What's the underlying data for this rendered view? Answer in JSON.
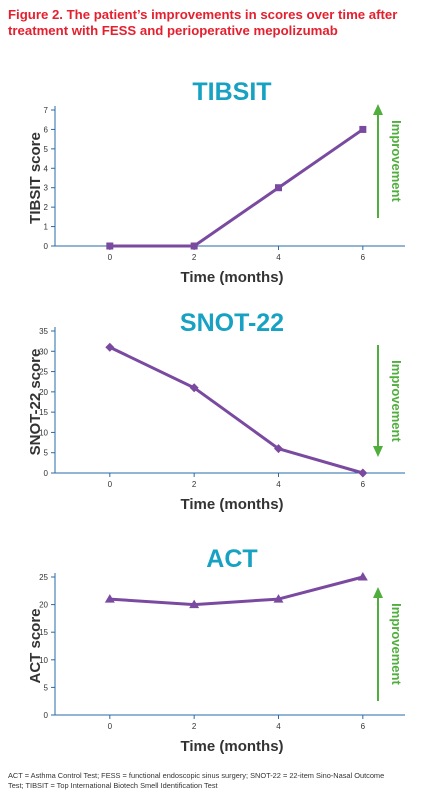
{
  "figure": {
    "title_line1": "Figure 2. The patient’s improvements in scores over time after",
    "title_line2": "treatment with FESS and perioperative mepolizumab",
    "footnote_line1": "ACT = Asthma Control Test; FESS = functional endoscopic sinus surgery; SNOT-22 = 22-item Sino-Nasal Outcome",
    "footnote_line2": "Test; TIBSIT = Top International Biotech Smell Identification Test"
  },
  "colors": {
    "title": "#e4202f",
    "chart_title": "#17a2c3",
    "series": "#7a4aa0",
    "improvement": "#4fae3c",
    "axis": "#2a6aa8"
  },
  "chart_data": [
    {
      "type": "line",
      "title": "TIBSIT",
      "xlabel": "Time (months)",
      "ylabel": "TIBSIT score",
      "x": [
        0,
        2,
        4,
        6
      ],
      "xticks": [
        0,
        2,
        4,
        6
      ],
      "yticks": [
        0,
        1,
        2,
        3,
        4,
        5,
        6,
        7
      ],
      "xlim": [
        -1.3,
        7
      ],
      "ylim": [
        0,
        7
      ],
      "series": [
        {
          "values": [
            0,
            0,
            3,
            6
          ],
          "marker": "square"
        }
      ],
      "annotation": {
        "text": "Improvement",
        "direction": "up"
      }
    },
    {
      "type": "line",
      "title": "SNOT-22",
      "xlabel": "Time (months)",
      "ylabel": "SNOT-22 score",
      "x": [
        0,
        2,
        4,
        6
      ],
      "xticks": [
        0,
        2,
        4,
        6
      ],
      "yticks": [
        0,
        5,
        10,
        15,
        20,
        25,
        30,
        35
      ],
      "xlim": [
        -1.3,
        7
      ],
      "ylim": [
        0,
        35
      ],
      "series": [
        {
          "values": [
            31,
            21,
            6,
            0
          ],
          "marker": "diamond"
        }
      ],
      "annotation": {
        "text": "Improvement",
        "direction": "down"
      }
    },
    {
      "type": "line",
      "title": "ACT",
      "xlabel": "Time (months)",
      "ylabel": "ACT score",
      "x": [
        0,
        2,
        4,
        6
      ],
      "xticks": [
        0,
        2,
        4,
        6
      ],
      "yticks": [
        0,
        5,
        10,
        15,
        20,
        25
      ],
      "xlim": [
        -1.3,
        7
      ],
      "ylim": [
        0,
        25
      ],
      "series": [
        {
          "values": [
            21,
            20,
            21,
            25
          ],
          "marker": "triangle"
        }
      ],
      "annotation": {
        "text": "Improvement",
        "direction": "up"
      }
    }
  ]
}
